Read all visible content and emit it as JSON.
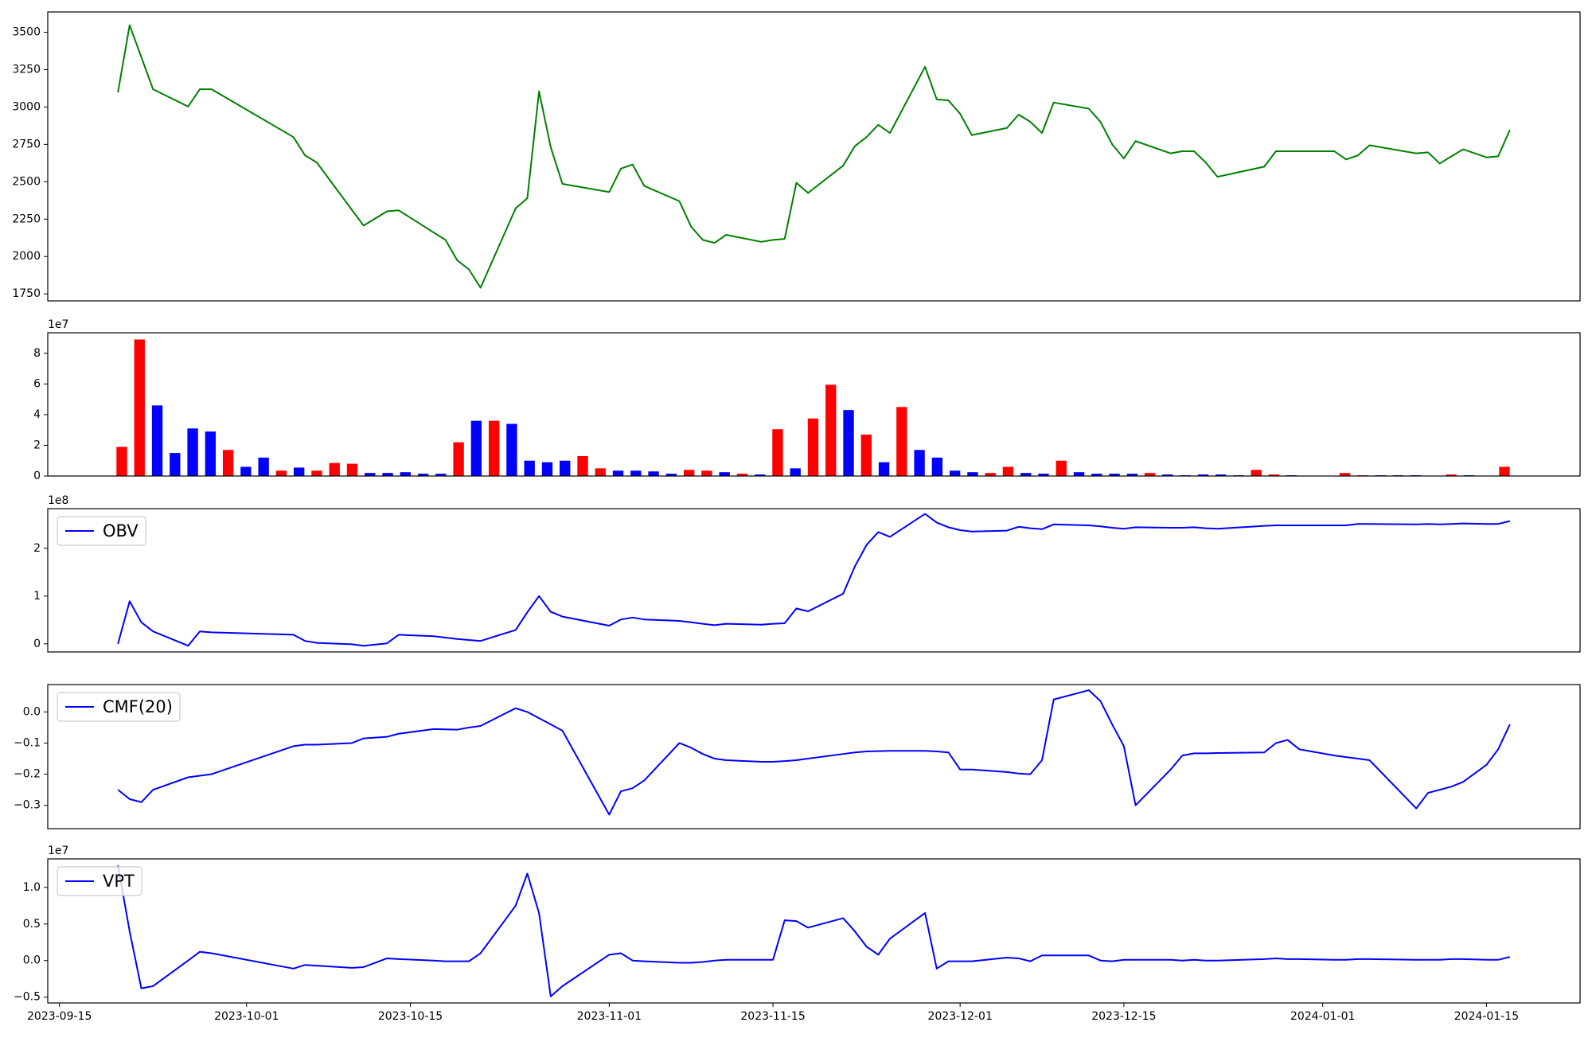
{
  "chart_data": [
    {
      "type": "line",
      "x": [
        "2023-09-20",
        "2023-09-21",
        "2023-09-22",
        "2023-09-23",
        "2023-09-26",
        "2023-09-27",
        "2023-09-28",
        "2023-10-05",
        "2023-10-06",
        "2023-10-07",
        "2023-10-10",
        "2023-10-11",
        "2023-10-13",
        "2023-10-14",
        "2023-10-17",
        "2023-10-18",
        "2023-10-19",
        "2023-10-20",
        "2023-10-21",
        "2023-10-24",
        "2023-10-25",
        "2023-10-26",
        "2023-10-27",
        "2023-10-28",
        "2023-11-01",
        "2023-11-02",
        "2023-11-03",
        "2023-11-04",
        "2023-11-07",
        "2023-11-08",
        "2023-11-09",
        "2023-11-10",
        "2023-11-11",
        "2023-11-14",
        "2023-11-15",
        "2023-11-16",
        "2023-11-17",
        "2023-11-18",
        "2023-11-21",
        "2023-11-22",
        "2023-11-23",
        "2023-11-24",
        "2023-11-25",
        "2023-11-28",
        "2023-11-29",
        "2023-11-30",
        "2023-12-01",
        "2023-12-02",
        "2023-12-05",
        "2023-12-06",
        "2023-12-07",
        "2023-12-08",
        "2023-12-09",
        "2023-12-12",
        "2023-12-13",
        "2023-12-14",
        "2023-12-15",
        "2023-12-16",
        "2023-12-19",
        "2023-12-20",
        "2023-12-21",
        "2023-12-22",
        "2023-12-23",
        "2023-12-27",
        "2023-12-28",
        "2023-12-29",
        "2023-12-30",
        "2024-01-02",
        "2024-01-03",
        "2024-01-04",
        "2024-01-05",
        "2024-01-09",
        "2024-01-10",
        "2024-01-11",
        "2024-01-12",
        "2024-01-13",
        "2024-01-15",
        "2024-01-16",
        "2024-01-17"
      ],
      "series": [
        {
          "color": "green",
          "values": [
            3098,
            3548,
            3333,
            3119,
            3003,
            3119,
            3119,
            2799,
            2676,
            2629,
            2312,
            2207,
            2302,
            2309,
            2160,
            2111,
            1975,
            1914,
            1791,
            2322,
            2390,
            3105,
            2731,
            2486,
            2431,
            2588,
            2615,
            2472,
            2370,
            2200,
            2111,
            2091,
            2145,
            2098,
            2111,
            2118,
            2493,
            2425,
            2608,
            2738,
            2799,
            2881,
            2826,
            3269,
            3051,
            3044,
            2955,
            2812,
            2860,
            2949,
            2901,
            2826,
            3030,
            2989,
            2901,
            2751,
            2656,
            2772,
            2690,
            2704,
            2704,
            2629,
            2533,
            2601,
            2704,
            2704,
            2704,
            2704,
            2649,
            2676,
            2744,
            2690,
            2697,
            2622,
            2670,
            2717,
            2663,
            2670,
            2847
          ]
        }
      ],
      "xlim": [
        "2023-09-14",
        "2024-01-23"
      ],
      "ylim": [
        1703,
        3636
      ],
      "yticks": [
        1750,
        2000,
        2250,
        2500,
        2750,
        3000,
        3250,
        3500
      ]
    },
    {
      "type": "bar",
      "values": [
        1.9,
        8.9,
        4.6,
        1.5,
        3.1,
        2.9,
        1.7,
        0.6,
        1.2,
        0.35,
        0.55,
        0.35,
        0.85,
        0.8,
        0.2,
        0.2,
        0.25,
        0.15,
        0.15,
        2.2,
        3.6,
        3.6,
        3.4,
        1.0,
        0.9,
        1.0,
        1.3,
        0.5,
        0.35,
        0.35,
        0.3,
        0.15,
        0.4,
        0.35,
        0.25,
        0.15,
        0.1,
        3.05,
        0.5,
        3.75,
        5.95,
        4.3,
        2.7,
        0.9,
        4.5,
        1.7,
        1.2,
        0.35,
        0.25,
        0.2,
        0.6,
        0.2,
        0.15,
        1.0,
        0.25,
        0.15,
        0.15,
        0.15,
        0.2,
        0.1,
        0.05,
        0.1,
        0.1,
        0.05,
        0.4,
        0.1,
        0.05,
        0.02,
        0.02,
        0.2,
        0.05,
        0.05,
        0.05,
        0.05,
        0.02,
        0.1,
        0.05,
        0.02,
        0.6
      ],
      "colors": [
        "red",
        "red",
        "blue",
        "blue",
        "blue",
        "blue",
        "red",
        "blue",
        "blue",
        "red",
        "blue",
        "red",
        "red",
        "red",
        "blue",
        "blue",
        "blue",
        "blue",
        "blue",
        "red",
        "blue",
        "red",
        "blue",
        "blue",
        "blue",
        "blue",
        "red",
        "red",
        "blue",
        "blue",
        "blue",
        "blue",
        "red",
        "red",
        "blue",
        "red",
        "blue",
        "red",
        "blue",
        "red",
        "red",
        "blue",
        "red",
        "blue",
        "red",
        "blue",
        "blue",
        "blue",
        "blue",
        "red",
        "red",
        "blue",
        "blue",
        "red",
        "blue",
        "blue",
        "blue",
        "blue",
        "red",
        "blue",
        "blue",
        "blue",
        "blue",
        "blue",
        "red",
        "red",
        "blue",
        "blue",
        "blue",
        "red",
        "red",
        "blue",
        "blue",
        "blue",
        "blue",
        "red",
        "blue",
        "blue",
        "red"
      ],
      "ylim": [
        0,
        9.34
      ],
      "yticks": [
        0,
        2,
        4,
        6,
        8
      ],
      "y_offset_label": "1e7"
    },
    {
      "type": "line",
      "x": [
        "2023-09-20",
        "2023-09-21",
        "2023-09-22",
        "2023-09-23",
        "2023-09-26",
        "2023-09-27",
        "2023-09-28",
        "2023-10-05",
        "2023-10-06",
        "2023-10-07",
        "2023-10-10",
        "2023-10-11",
        "2023-10-13",
        "2023-10-14",
        "2023-10-17",
        "2023-10-18",
        "2023-10-19",
        "2023-10-20",
        "2023-10-21",
        "2023-10-24",
        "2023-10-25",
        "2023-10-26",
        "2023-10-27",
        "2023-10-28",
        "2023-11-01",
        "2023-11-02",
        "2023-11-03",
        "2023-11-04",
        "2023-11-07",
        "2023-11-08",
        "2023-11-09",
        "2023-11-10",
        "2023-11-11",
        "2023-11-14",
        "2023-11-15",
        "2023-11-16",
        "2023-11-17",
        "2023-11-18",
        "2023-11-21",
        "2023-11-22",
        "2023-11-23",
        "2023-11-24",
        "2023-11-25",
        "2023-11-28",
        "2023-11-29",
        "2023-11-30",
        "2023-12-01",
        "2023-12-02",
        "2023-12-05",
        "2023-12-06",
        "2023-12-07",
        "2023-12-08",
        "2023-12-09",
        "2023-12-12",
        "2023-12-13",
        "2023-12-14",
        "2023-12-15",
        "2023-12-16",
        "2023-12-19",
        "2023-12-20",
        "2023-12-21",
        "2023-12-22",
        "2023-12-23",
        "2023-12-27",
        "2023-12-28",
        "2023-12-29",
        "2023-12-30",
        "2024-01-02",
        "2024-01-03",
        "2024-01-04",
        "2024-01-05",
        "2024-01-09",
        "2024-01-10",
        "2024-01-11",
        "2024-01-12",
        "2024-01-13",
        "2024-01-15",
        "2024-01-16",
        "2024-01-17"
      ],
      "series": [
        {
          "name": "OBV",
          "color": "blue",
          "values": [
            0.0,
            0.89,
            0.45,
            0.26,
            -0.04,
            0.26,
            0.24,
            0.19,
            0.06,
            0.02,
            -0.01,
            -0.04,
            0.01,
            0.19,
            0.16,
            0.13,
            0.1,
            0.08,
            0.06,
            0.29,
            0.66,
            1.0,
            0.67,
            0.57,
            0.38,
            0.51,
            0.55,
            0.51,
            0.48,
            0.45,
            0.42,
            0.39,
            0.42,
            0.4,
            0.42,
            0.43,
            0.74,
            0.68,
            1.05,
            1.62,
            2.07,
            2.34,
            2.24,
            2.72,
            2.54,
            2.44,
            2.38,
            2.35,
            2.37,
            2.45,
            2.42,
            2.4,
            2.5,
            2.48,
            2.46,
            2.43,
            2.41,
            2.44,
            2.43,
            2.43,
            2.44,
            2.42,
            2.41,
            2.47,
            2.48,
            2.48,
            2.48,
            2.48,
            2.48,
            2.51,
            2.51,
            2.5,
            2.51,
            2.5,
            2.51,
            2.52,
            2.51,
            2.51,
            2.57
          ]
        }
      ],
      "xlim": [
        "2023-09-14",
        "2024-01-23"
      ],
      "ylim": [
        -0.17,
        2.83
      ],
      "yticks": [
        0,
        1,
        2
      ],
      "y_offset_label": "1e8",
      "legend": "upper left"
    },
    {
      "type": "line",
      "x": [
        "2023-09-20",
        "2023-09-21",
        "2023-09-22",
        "2023-09-23",
        "2023-09-26",
        "2023-09-27",
        "2023-09-28",
        "2023-10-05",
        "2023-10-06",
        "2023-10-07",
        "2023-10-10",
        "2023-10-11",
        "2023-10-13",
        "2023-10-14",
        "2023-10-17",
        "2023-10-18",
        "2023-10-19",
        "2023-10-20",
        "2023-10-21",
        "2023-10-24",
        "2023-10-25",
        "2023-10-26",
        "2023-10-27",
        "2023-10-28",
        "2023-11-01",
        "2023-11-02",
        "2023-11-03",
        "2023-11-04",
        "2023-11-07",
        "2023-11-08",
        "2023-11-09",
        "2023-11-10",
        "2023-11-11",
        "2023-11-14",
        "2023-11-15",
        "2023-11-16",
        "2023-11-17",
        "2023-11-18",
        "2023-11-21",
        "2023-11-22",
        "2023-11-23",
        "2023-11-24",
        "2023-11-25",
        "2023-11-28",
        "2023-11-29",
        "2023-11-30",
        "2023-12-01",
        "2023-12-02",
        "2023-12-05",
        "2023-12-06",
        "2023-12-07",
        "2023-12-08",
        "2023-12-09",
        "2023-12-12",
        "2023-12-13",
        "2023-12-14",
        "2023-12-15",
        "2023-12-16",
        "2023-12-19",
        "2023-12-20",
        "2023-12-21",
        "2023-12-22",
        "2023-12-23",
        "2023-12-27",
        "2023-12-28",
        "2023-12-29",
        "2023-12-30",
        "2024-01-02",
        "2024-01-03",
        "2024-01-04",
        "2024-01-05",
        "2024-01-09",
        "2024-01-10",
        "2024-01-11",
        "2024-01-12",
        "2024-01-13",
        "2024-01-15",
        "2024-01-16",
        "2024-01-17"
      ],
      "series": [
        {
          "name": "CMF(20)",
          "color": "blue",
          "values": [
            -0.25,
            -0.28,
            -0.29,
            -0.25,
            -0.21,
            -0.205,
            -0.2,
            -0.11,
            -0.105,
            -0.105,
            -0.1,
            -0.085,
            -0.08,
            -0.07,
            -0.055,
            -0.056,
            -0.057,
            -0.05,
            -0.045,
            0.012,
            0.0,
            -0.02,
            -0.04,
            -0.06,
            -0.33,
            -0.255,
            -0.245,
            -0.22,
            -0.1,
            -0.115,
            -0.135,
            -0.15,
            -0.155,
            -0.16,
            -0.16,
            -0.158,
            -0.155,
            -0.15,
            -0.135,
            -0.13,
            -0.127,
            -0.126,
            -0.125,
            -0.125,
            -0.127,
            -0.13,
            -0.185,
            -0.185,
            -0.193,
            -0.198,
            -0.2,
            -0.155,
            0.04,
            0.07,
            0.035,
            -0.04,
            -0.11,
            -0.3,
            -0.185,
            -0.14,
            -0.133,
            -0.133,
            -0.132,
            -0.13,
            -0.1,
            -0.09,
            -0.12,
            -0.14,
            -0.145,
            -0.15,
            -0.155,
            -0.31,
            -0.26,
            -0.25,
            -0.24,
            -0.225,
            -0.17,
            -0.12,
            -0.04
          ]
        }
      ],
      "xlim": [
        "2023-09-14",
        "2024-01-23"
      ],
      "ylim": [
        -0.375,
        0.088
      ],
      "yticks": [
        {
          "value": -0.3,
          "label": "−0.3"
        },
        {
          "value": -0.2,
          "label": "−0.2"
        },
        {
          "value": -0.1,
          "label": "−0.1"
        },
        {
          "value": 0,
          "label": "0.0"
        }
      ],
      "legend": "upper left"
    },
    {
      "type": "line",
      "x": [
        "2023-09-20",
        "2023-09-21",
        "2023-09-22",
        "2023-09-23",
        "2023-09-26",
        "2023-09-27",
        "2023-09-28",
        "2023-10-05",
        "2023-10-06",
        "2023-10-07",
        "2023-10-10",
        "2023-10-11",
        "2023-10-13",
        "2023-10-14",
        "2023-10-17",
        "2023-10-18",
        "2023-10-19",
        "2023-10-20",
        "2023-10-21",
        "2023-10-24",
        "2023-10-25",
        "2023-10-26",
        "2023-10-27",
        "2023-10-28",
        "2023-11-01",
        "2023-11-02",
        "2023-11-03",
        "2023-11-04",
        "2023-11-07",
        "2023-11-08",
        "2023-11-09",
        "2023-11-10",
        "2023-11-11",
        "2023-11-14",
        "2023-11-15",
        "2023-11-16",
        "2023-11-17",
        "2023-11-18",
        "2023-11-21",
        "2023-11-22",
        "2023-11-23",
        "2023-11-24",
        "2023-11-25",
        "2023-11-28",
        "2023-11-29",
        "2023-11-30",
        "2023-12-01",
        "2023-12-02",
        "2023-12-05",
        "2023-12-06",
        "2023-12-07",
        "2023-12-08",
        "2023-12-09",
        "2023-12-12",
        "2023-12-13",
        "2023-12-14",
        "2023-12-15",
        "2023-12-16",
        "2023-12-19",
        "2023-12-20",
        "2023-12-21",
        "2023-12-22",
        "2023-12-23",
        "2023-12-27",
        "2023-12-28",
        "2023-12-29",
        "2023-12-30",
        "2024-01-02",
        "2024-01-03",
        "2024-01-04",
        "2024-01-05",
        "2024-01-09",
        "2024-01-10",
        "2024-01-11",
        "2024-01-12",
        "2024-01-13",
        "2024-01-15",
        "2024-01-16",
        "2024-01-17"
      ],
      "series": [
        {
          "name": "VPT",
          "color": "blue",
          "values": [
            1.3,
            0.4,
            -0.38,
            -0.35,
            0.0,
            0.12,
            0.1,
            -0.11,
            -0.06,
            -0.07,
            -0.1,
            -0.09,
            0.03,
            0.02,
            0.0,
            -0.01,
            -0.01,
            -0.01,
            0.1,
            0.75,
            1.19,
            0.65,
            -0.49,
            -0.35,
            0.08,
            0.1,
            0.0,
            -0.01,
            -0.03,
            -0.03,
            -0.02,
            0.0,
            0.01,
            0.01,
            0.01,
            0.55,
            0.54,
            0.45,
            0.58,
            0.4,
            0.19,
            0.08,
            0.3,
            0.65,
            -0.11,
            -0.01,
            -0.01,
            -0.01,
            0.04,
            0.03,
            -0.01,
            0.07,
            0.07,
            0.07,
            0.0,
            -0.01,
            0.01,
            0.01,
            0.01,
            0.0,
            0.01,
            0.0,
            0.0,
            0.02,
            0.03,
            0.02,
            0.02,
            0.01,
            0.01,
            0.02,
            0.02,
            0.01,
            0.01,
            0.01,
            0.02,
            0.02,
            0.01,
            0.01,
            0.05
          ]
        }
      ],
      "xlim": [
        "2023-09-14",
        "2024-01-23"
      ],
      "xticks": [
        "2023-09-15",
        "2023-10-01",
        "2023-10-15",
        "2023-11-01",
        "2023-11-15",
        "2023-12-01",
        "2023-12-15",
        "2024-01-01",
        "2024-01-15"
      ],
      "ylim": [
        -0.58,
        1.39
      ],
      "yticks": [
        {
          "value": -0.5,
          "label": "−0.5"
        },
        {
          "value": 0,
          "label": "0.0"
        },
        {
          "value": 0.5,
          "label": "0.5"
        },
        {
          "value": 1,
          "label": "1.0"
        }
      ],
      "y_offset_label": "1e7",
      "legend": "upper left"
    }
  ]
}
